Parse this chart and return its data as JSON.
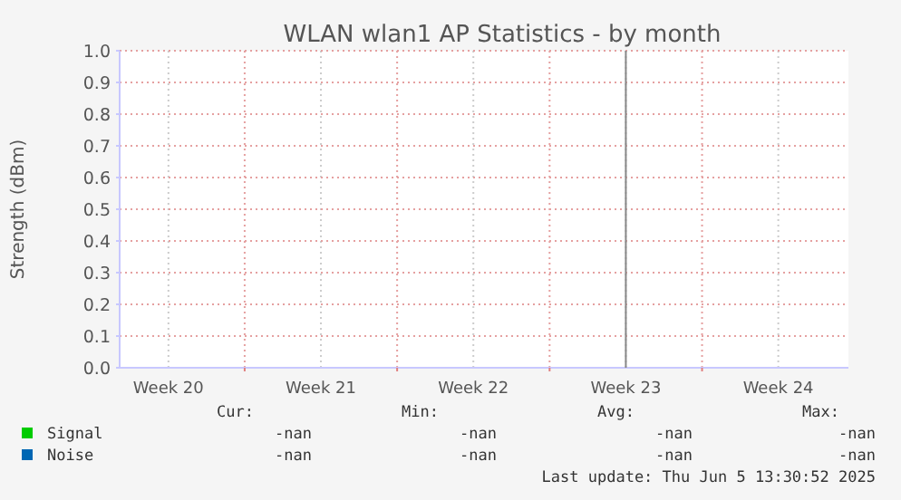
{
  "chart_data": {
    "type": "line",
    "title": "WLAN wlan1 AP Statistics - by month",
    "ylabel": "Strength (dBm)",
    "categories": [
      "Week 20",
      "Week 21",
      "Week 22",
      "Week 23",
      "Week 24"
    ],
    "ylim": [
      0,
      1
    ],
    "yticks": [
      {
        "value": 0,
        "label": "0.0"
      },
      {
        "value": 0.1,
        "label": "0.1"
      },
      {
        "value": 0.2,
        "label": "0.2"
      },
      {
        "value": 0.3,
        "label": "0.3"
      },
      {
        "value": 0.4,
        "label": "0.4"
      },
      {
        "value": 0.5,
        "label": "0.5"
      },
      {
        "value": 0.6,
        "label": "0.6"
      },
      {
        "value": 0.7,
        "label": "0.7"
      },
      {
        "value": 0.8,
        "label": "0.8"
      },
      {
        "value": 0.9,
        "label": "0.9"
      },
      {
        "value": 1,
        "label": "1.0"
      }
    ],
    "grid": true,
    "legend": "bottom left",
    "series": [
      {
        "name": "Signal",
        "color": "#00cc00",
        "values": [
          null,
          null,
          null,
          null,
          null
        ]
      },
      {
        "name": "Noise",
        "color": "#0066b3",
        "values": [
          null,
          null,
          null,
          null,
          null
        ]
      }
    ],
    "ref_lines": [
      {
        "axis": "x",
        "value": "Week 23",
        "color": "#888888"
      }
    ],
    "annotations": [
      "Cur:",
      "Min:",
      "Avg:",
      "Max:",
      "-nan",
      "-nan",
      "-nan",
      "-nan",
      "-nan",
      "-nan",
      "-nan",
      "-nan",
      "Last update: Thu Jun  5 13:30:52 2025"
    ]
  }
}
